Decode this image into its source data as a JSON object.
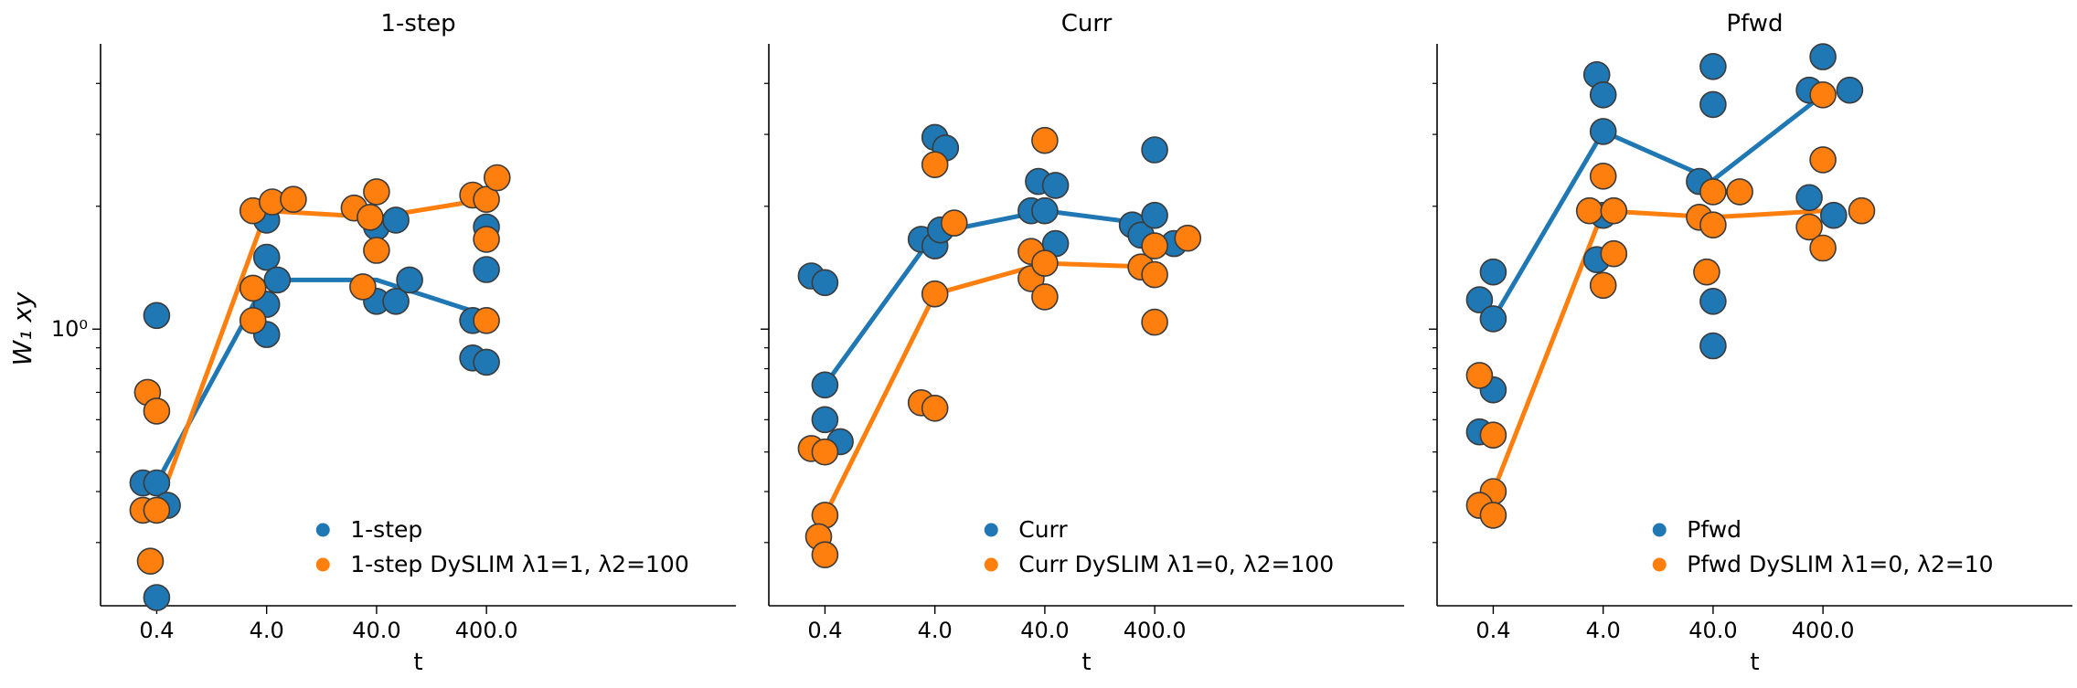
{
  "figure": {
    "ylabel": "W₁ xy",
    "xlabel": "t",
    "y_tick_label": "10⁰",
    "x_tick_labels": [
      "0.4",
      "4.0",
      "40.0",
      "400.0"
    ],
    "colors": {
      "base": "#1f77b4",
      "dyslim": "#ff7f0e",
      "marker_edge": "#3b3b3b"
    }
  },
  "chart_data": [
    {
      "type": "scatter",
      "title": "1-step",
      "xlabel": "t",
      "ylabel": "W₁ xy",
      "yscale": "log",
      "ylim": [
        0.21,
        5.0
      ],
      "x_ticks": [
        0.4,
        4.0,
        40.0,
        400.0
      ],
      "legend_position": "lower-right",
      "series": [
        {
          "name": "1-step",
          "color": "#1f77b4",
          "mean_line": [
            [
              0.4,
              0.42
            ],
            [
              4.0,
              1.32
            ],
            [
              40.0,
              1.32
            ],
            [
              400.0,
              1.08
            ]
          ],
          "points": [
            [
              0.3,
              0.42
            ],
            [
              0.4,
              0.42
            ],
            [
              0.5,
              0.37
            ],
            [
              0.4,
              1.08
            ],
            [
              0.4,
              0.22
            ],
            [
              4.0,
              1.85
            ],
            [
              4.0,
              1.5
            ],
            [
              4.0,
              1.15
            ],
            [
              4.0,
              0.97
            ],
            [
              5.0,
              1.32
            ],
            [
              40.0,
              1.78
            ],
            [
              40.0,
              1.17
            ],
            [
              60.0,
              1.17
            ],
            [
              80.0,
              1.32
            ],
            [
              60.0,
              1.85
            ],
            [
              400.0,
              1.78
            ],
            [
              400.0,
              1.4
            ],
            [
              300.0,
              1.05
            ],
            [
              300.0,
              0.85
            ],
            [
              400.0,
              0.83
            ]
          ]
        },
        {
          "name": "1-step DySLIM λ1=1, λ2=100",
          "color": "#ff7f0e",
          "mean_line": [
            [
              0.4,
              0.36
            ],
            [
              4.0,
              1.95
            ],
            [
              40.0,
              1.88
            ],
            [
              400.0,
              2.08
            ]
          ],
          "points": [
            [
              0.3,
              0.36
            ],
            [
              0.4,
              0.36
            ],
            [
              0.35,
              0.27
            ],
            [
              0.33,
              0.7
            ],
            [
              0.4,
              0.63
            ],
            [
              3.0,
              1.95
            ],
            [
              3.0,
              1.26
            ],
            [
              3.0,
              1.05
            ],
            [
              4.5,
              2.05
            ],
            [
              7.0,
              2.08
            ],
            [
              25.0,
              1.98
            ],
            [
              35.0,
              1.88
            ],
            [
              40.0,
              2.17
            ],
            [
              40.0,
              1.56
            ],
            [
              30.0,
              1.27
            ],
            [
              300.0,
              2.13
            ],
            [
              400.0,
              2.08
            ],
            [
              500.0,
              2.35
            ],
            [
              400.0,
              1.66
            ],
            [
              400.0,
              1.05
            ]
          ]
        }
      ]
    },
    {
      "type": "scatter",
      "title": "Curr",
      "xlabel": "t",
      "yscale": "log",
      "ylim": [
        0.21,
        5.0
      ],
      "x_ticks": [
        0.4,
        4.0,
        40.0,
        400.0
      ],
      "legend_position": "lower-right",
      "series": [
        {
          "name": "Curr",
          "color": "#1f77b4",
          "mean_line": [
            [
              0.4,
              0.73
            ],
            [
              4.0,
              1.72
            ],
            [
              40.0,
              1.95
            ],
            [
              400.0,
              1.8
            ]
          ],
          "points": [
            [
              0.3,
              1.35
            ],
            [
              0.4,
              1.3
            ],
            [
              0.4,
              0.73
            ],
            [
              0.4,
              0.6
            ],
            [
              0.55,
              0.53
            ],
            [
              3.0,
              1.66
            ],
            [
              4.0,
              1.6
            ],
            [
              4.5,
              1.75
            ],
            [
              4.0,
              2.95
            ],
            [
              5.0,
              2.78
            ],
            [
              30.0,
              1.95
            ],
            [
              35.0,
              2.3
            ],
            [
              40.0,
              1.95
            ],
            [
              50.0,
              2.25
            ],
            [
              50.0,
              1.62
            ],
            [
              250.0,
              1.8
            ],
            [
              300.0,
              1.7
            ],
            [
              400.0,
              1.9
            ],
            [
              400.0,
              2.75
            ],
            [
              600.0,
              1.62
            ]
          ]
        },
        {
          "name": "Curr DySLIM λ1=0, λ2=100",
          "color": "#ff7f0e",
          "mean_line": [
            [
              0.4,
              0.35
            ],
            [
              4.0,
              1.22
            ],
            [
              40.0,
              1.45
            ],
            [
              400.0,
              1.42
            ]
          ],
          "points": [
            [
              0.3,
              0.51
            ],
            [
              0.4,
              0.5
            ],
            [
              0.4,
              0.35
            ],
            [
              0.35,
              0.31
            ],
            [
              0.4,
              0.28
            ],
            [
              3.0,
              0.66
            ],
            [
              4.0,
              0.64
            ],
            [
              4.0,
              1.22
            ],
            [
              4.0,
              2.53
            ],
            [
              6.0,
              1.82
            ],
            [
              30.0,
              1.55
            ],
            [
              30.0,
              1.33
            ],
            [
              40.0,
              1.45
            ],
            [
              40.0,
              1.2
            ],
            [
              40.0,
              2.9
            ],
            [
              300.0,
              1.42
            ],
            [
              400.0,
              1.6
            ],
            [
              400.0,
              1.36
            ],
            [
              400.0,
              1.04
            ],
            [
              800.0,
              1.67
            ]
          ]
        }
      ]
    },
    {
      "type": "scatter",
      "title": "Pfwd",
      "xlabel": "t",
      "yscale": "log",
      "ylim": [
        0.21,
        5.0
      ],
      "x_ticks": [
        0.4,
        4.0,
        40.0,
        400.0
      ],
      "legend_position": "lower-right",
      "series": [
        {
          "name": "Pfwd",
          "color": "#1f77b4",
          "mean_line": [
            [
              0.4,
              1.06
            ],
            [
              4.0,
              3.05
            ],
            [
              40.0,
              2.32
            ],
            [
              400.0,
              3.75
            ]
          ],
          "points": [
            [
              0.3,
              1.18
            ],
            [
              0.4,
              1.06
            ],
            [
              0.4,
              1.38
            ],
            [
              0.4,
              0.71
            ],
            [
              0.3,
              0.56
            ],
            [
              3.5,
              4.2
            ],
            [
              4.0,
              3.75
            ],
            [
              4.0,
              3.05
            ],
            [
              3.5,
              1.48
            ],
            [
              4.0,
              1.9
            ],
            [
              30.0,
              2.3
            ],
            [
              40.0,
              4.4
            ],
            [
              40.0,
              3.55
            ],
            [
              40.0,
              1.17
            ],
            [
              40.0,
              0.91
            ],
            [
              300.0,
              3.85
            ],
            [
              300.0,
              2.1
            ],
            [
              400.0,
              4.65
            ],
            [
              700.0,
              3.85
            ],
            [
              500.0,
              1.9
            ]
          ]
        },
        {
          "name": "Pfwd DySLIM λ1=0, λ2=10",
          "color": "#ff7f0e",
          "mean_line": [
            [
              0.4,
              0.4
            ],
            [
              4.0,
              1.95
            ],
            [
              40.0,
              1.88
            ],
            [
              400.0,
              1.95
            ]
          ],
          "points": [
            [
              0.3,
              0.77
            ],
            [
              0.4,
              0.55
            ],
            [
              0.4,
              0.4
            ],
            [
              0.3,
              0.37
            ],
            [
              0.4,
              0.35
            ],
            [
              3.0,
              1.95
            ],
            [
              4.0,
              2.37
            ],
            [
              5.0,
              1.95
            ],
            [
              4.0,
              1.28
            ],
            [
              5.0,
              1.53
            ],
            [
              30.0,
              1.88
            ],
            [
              40.0,
              2.17
            ],
            [
              40.0,
              1.8
            ],
            [
              70.0,
              2.17
            ],
            [
              35.0,
              1.38
            ],
            [
              300.0,
              1.78
            ],
            [
              400.0,
              3.75
            ],
            [
              400.0,
              2.6
            ],
            [
              400.0,
              1.58
            ],
            [
              900.0,
              1.95
            ]
          ]
        }
      ]
    }
  ]
}
